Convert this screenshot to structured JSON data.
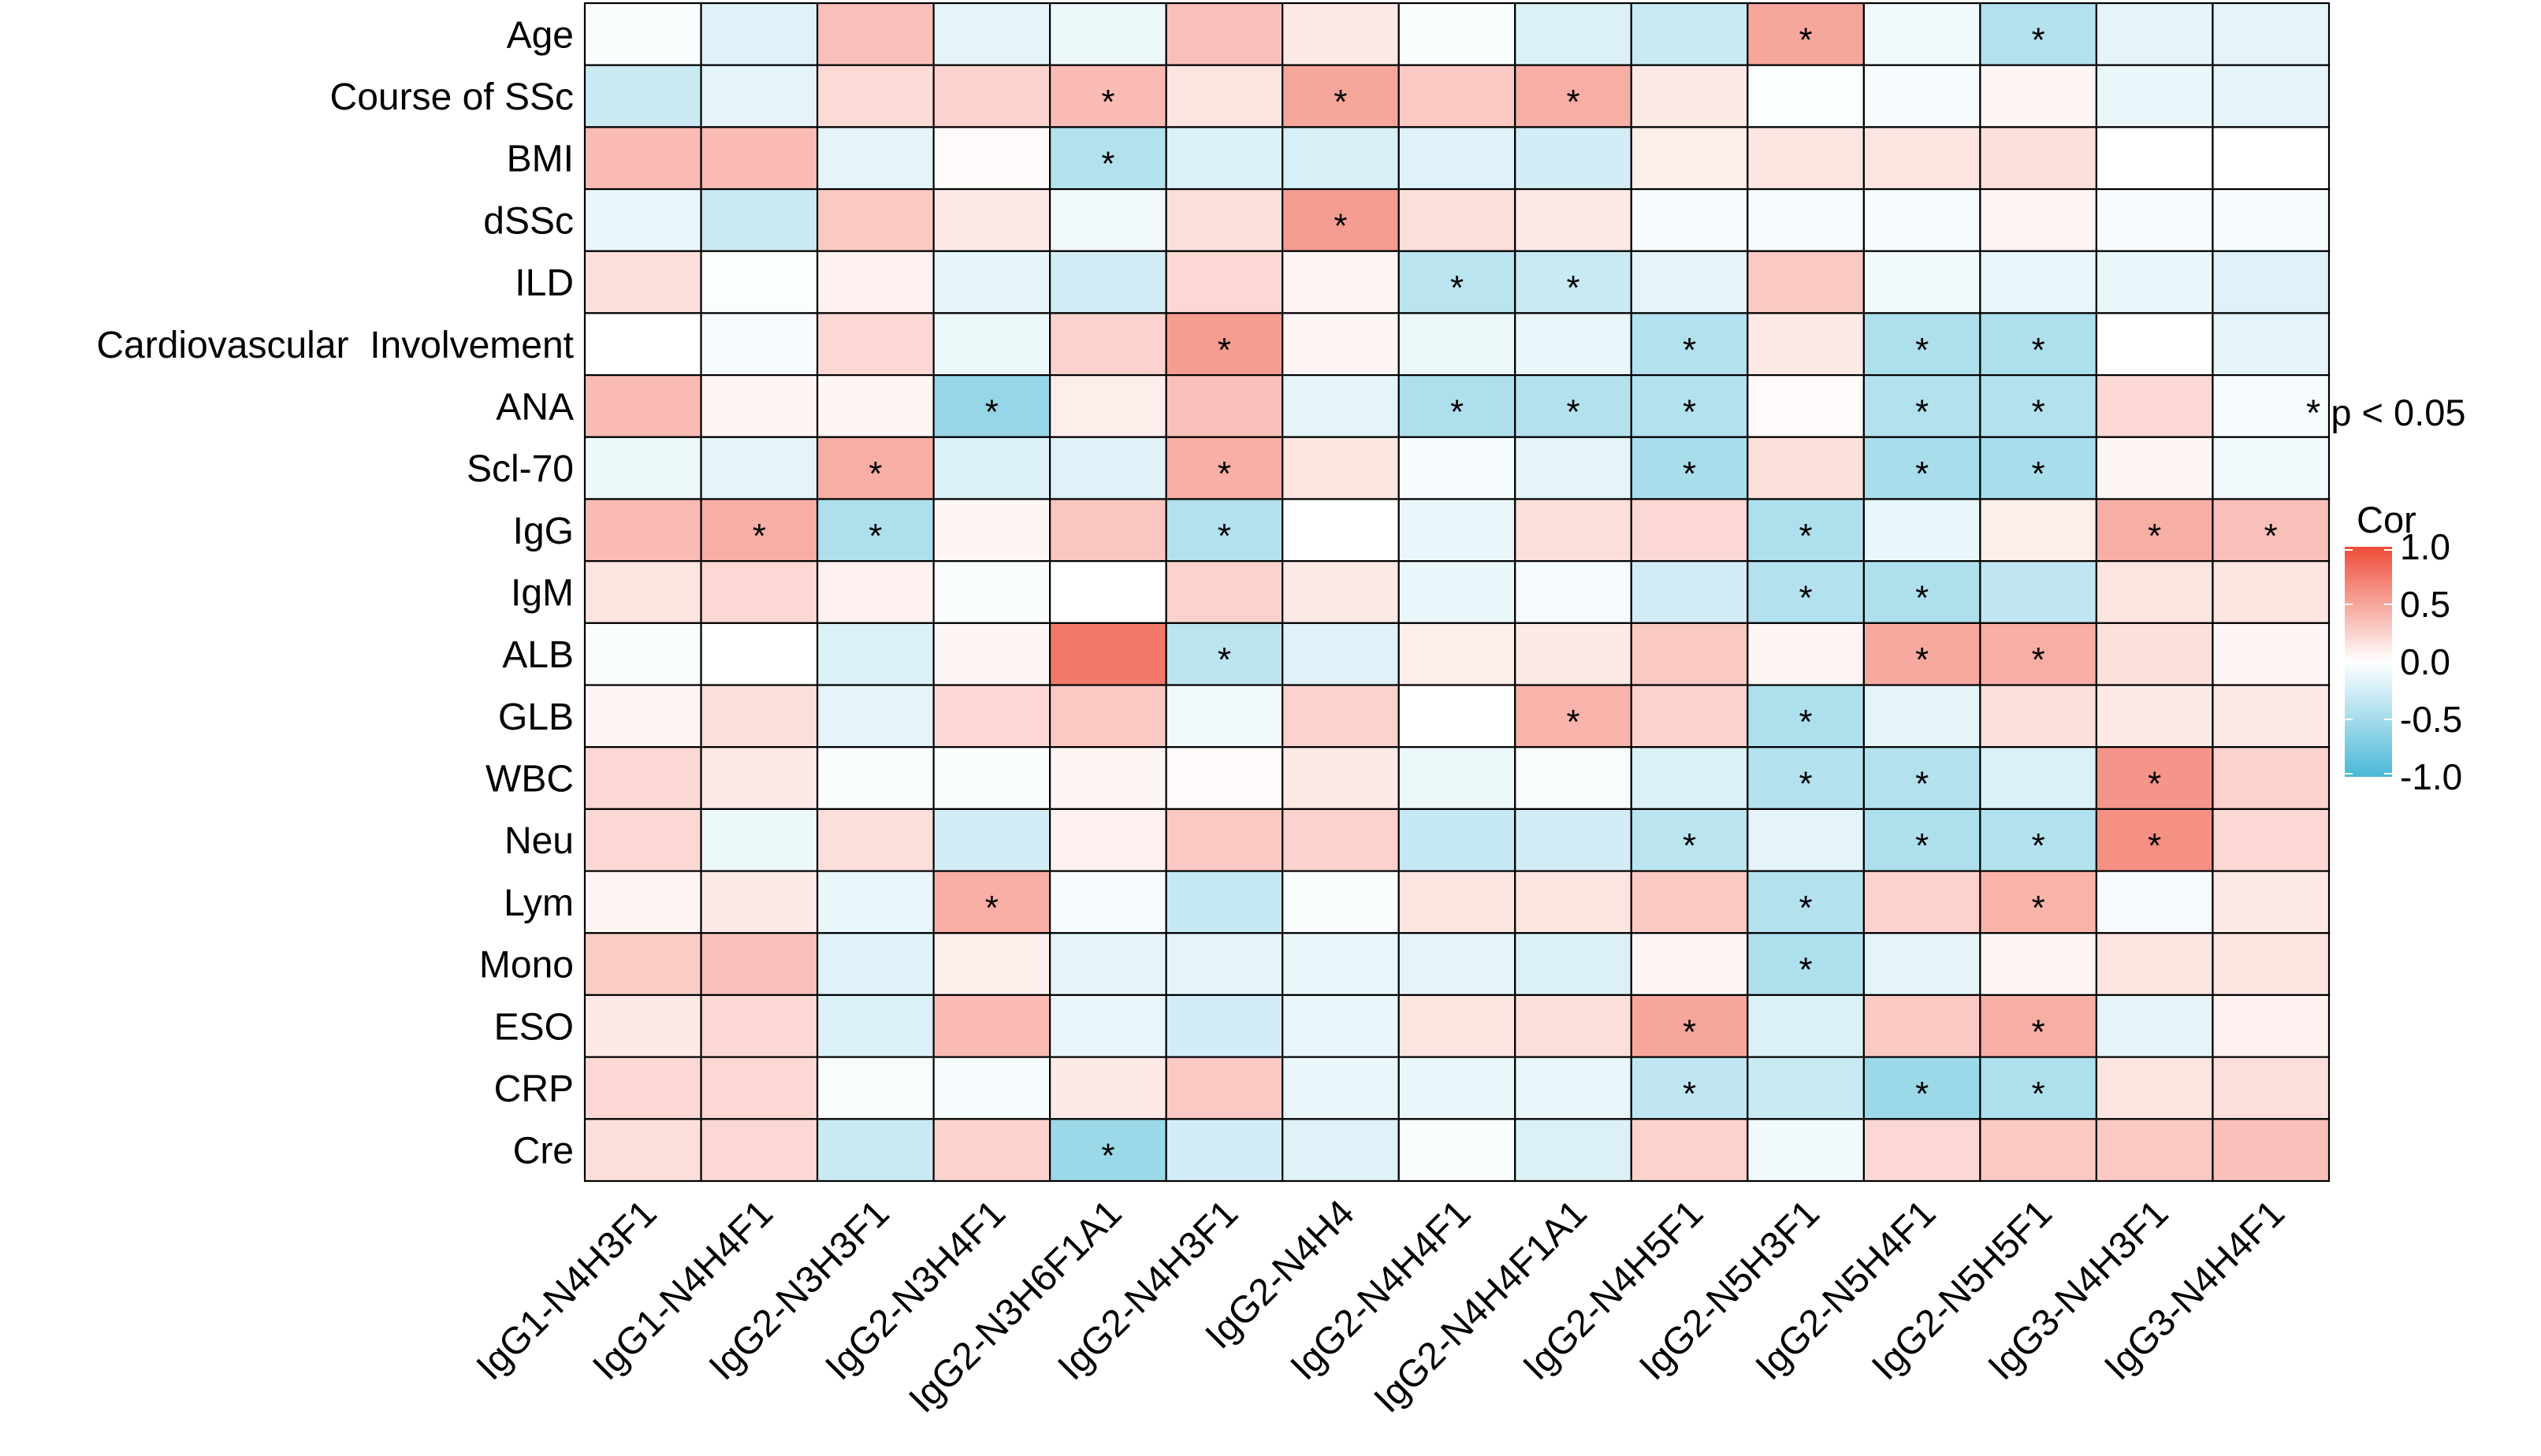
{
  "chart_data": {
    "type": "heatmap",
    "title": "",
    "xlabel": "",
    "ylabel": "",
    "rows": [
      "Age",
      "Course of SSc",
      "BMI",
      "dSSc",
      "ILD",
      "Cardiovascular  Involvement",
      "ANA",
      "Scl-70",
      "IgG",
      "IgM",
      "ALB",
      "GLB",
      "WBC",
      "Neu",
      "Lym",
      "Mono",
      "ESO",
      "CRP",
      "Cre"
    ],
    "columns": [
      "IgG1-N4H3F1",
      "IgG1-N4H4F1",
      "IgG2-N3H3F1",
      "IgG2-N3H4F1",
      "IgG2-N3H6F1A1",
      "IgG2-N4H3F1",
      "IgG2-N4H4",
      "IgG2-N4H4F1",
      "IgG2-N4H4F1A1",
      "IgG2-N4H5F1",
      "IgG2-N5H3F1",
      "IgG2-N5H4F1",
      "IgG2-N5H5F1",
      "IgG3-N4H3F1",
      "IgG3-N4H4F1"
    ],
    "values": [
      [
        -0.03,
        -0.18,
        0.35,
        -0.15,
        -0.1,
        0.35,
        0.12,
        -0.03,
        -0.2,
        -0.3,
        0.5,
        -0.08,
        -0.42,
        -0.15,
        -0.15
      ],
      [
        -0.3,
        -0.15,
        0.2,
        0.25,
        0.38,
        0.15,
        0.5,
        0.3,
        0.45,
        0.12,
        -0.02,
        -0.05,
        0.05,
        -0.12,
        -0.15
      ],
      [
        0.38,
        0.38,
        -0.15,
        0.03,
        -0.42,
        -0.2,
        -0.22,
        -0.18,
        -0.25,
        0.1,
        0.15,
        0.15,
        0.18,
        0.0,
        0.0
      ],
      [
        -0.12,
        -0.3,
        0.3,
        0.12,
        -0.08,
        0.18,
        0.55,
        0.18,
        0.12,
        -0.05,
        -0.05,
        -0.05,
        0.05,
        -0.05,
        -0.05
      ],
      [
        0.18,
        -0.02,
        0.08,
        -0.15,
        -0.25,
        0.22,
        0.05,
        -0.38,
        -0.3,
        -0.15,
        0.3,
        -0.08,
        -0.12,
        -0.12,
        -0.18
      ],
      [
        0.0,
        -0.05,
        0.22,
        -0.1,
        0.25,
        0.55,
        0.05,
        -0.1,
        -0.12,
        -0.42,
        0.12,
        -0.45,
        -0.45,
        0.0,
        -0.15
      ],
      [
        0.38,
        0.05,
        0.05,
        -0.58,
        0.1,
        0.35,
        -0.15,
        -0.45,
        -0.42,
        -0.42,
        0.03,
        -0.42,
        -0.42,
        0.22,
        -0.05
      ],
      [
        -0.1,
        -0.15,
        0.45,
        -0.2,
        -0.18,
        0.45,
        0.15,
        -0.05,
        -0.15,
        -0.48,
        0.18,
        -0.48,
        -0.48,
        0.05,
        -0.08
      ],
      [
        0.38,
        0.45,
        -0.45,
        0.05,
        0.32,
        -0.42,
        0.0,
        -0.12,
        0.18,
        0.22,
        -0.45,
        -0.12,
        0.1,
        0.45,
        0.35
      ],
      [
        0.15,
        0.22,
        0.08,
        -0.03,
        0.0,
        0.25,
        0.12,
        -0.12,
        -0.05,
        -0.25,
        -0.42,
        -0.45,
        -0.35,
        0.15,
        0.15
      ],
      [
        -0.03,
        0.0,
        -0.2,
        0.05,
        0.75,
        -0.38,
        -0.18,
        0.1,
        0.12,
        0.3,
        0.05,
        0.48,
        0.45,
        0.18,
        0.05
      ],
      [
        0.05,
        0.18,
        -0.15,
        0.22,
        0.3,
        -0.08,
        0.25,
        0.0,
        0.42,
        0.25,
        -0.45,
        -0.15,
        0.18,
        0.12,
        0.12
      ],
      [
        0.22,
        0.12,
        -0.03,
        -0.03,
        0.05,
        0.03,
        0.12,
        -0.1,
        -0.03,
        -0.2,
        -0.42,
        -0.42,
        -0.2,
        0.6,
        0.25
      ],
      [
        0.22,
        -0.1,
        0.18,
        -0.25,
        0.08,
        0.3,
        0.25,
        -0.32,
        -0.25,
        -0.38,
        -0.15,
        -0.45,
        -0.42,
        0.62,
        0.22
      ],
      [
        0.05,
        0.12,
        -0.12,
        0.45,
        -0.05,
        -0.32,
        -0.03,
        0.15,
        0.15,
        0.3,
        -0.42,
        0.25,
        0.42,
        -0.05,
        0.12
      ],
      [
        0.28,
        0.35,
        -0.18,
        0.1,
        -0.15,
        -0.15,
        -0.12,
        -0.15,
        -0.2,
        0.05,
        -0.45,
        -0.15,
        0.05,
        0.15,
        0.15
      ],
      [
        0.12,
        0.22,
        -0.2,
        0.38,
        -0.12,
        -0.25,
        -0.12,
        0.15,
        0.18,
        0.5,
        -0.2,
        0.3,
        0.45,
        -0.15,
        0.08
      ],
      [
        0.22,
        0.22,
        -0.03,
        -0.05,
        0.12,
        0.3,
        -0.12,
        -0.12,
        -0.12,
        -0.35,
        -0.3,
        -0.55,
        -0.45,
        0.15,
        0.18
      ],
      [
        0.18,
        0.22,
        -0.3,
        0.25,
        -0.55,
        -0.25,
        -0.18,
        -0.03,
        -0.2,
        0.25,
        -0.08,
        0.22,
        0.3,
        0.3,
        0.35
      ]
    ],
    "significant": [
      [
        "Age",
        "IgG2-N5H3F1"
      ],
      [
        "Age",
        "IgG2-N5H5F1"
      ],
      [
        "Course of SSc",
        "IgG2-N3H6F1A1"
      ],
      [
        "Course of SSc",
        "IgG2-N4H4"
      ],
      [
        "Course of SSc",
        "IgG2-N4H4F1A1"
      ],
      [
        "BMI",
        "IgG2-N3H6F1A1"
      ],
      [
        "dSSc",
        "IgG2-N4H4"
      ],
      [
        "ILD",
        "IgG2-N4H4F1"
      ],
      [
        "ILD",
        "IgG2-N4H4F1A1"
      ],
      [
        "Cardiovascular  Involvement",
        "IgG2-N4H3F1"
      ],
      [
        "Cardiovascular  Involvement",
        "IgG2-N4H5F1"
      ],
      [
        "Cardiovascular  Involvement",
        "IgG2-N5H4F1"
      ],
      [
        "Cardiovascular  Involvement",
        "IgG2-N5H5F1"
      ],
      [
        "ANA",
        "IgG2-N3H4F1"
      ],
      [
        "ANA",
        "IgG2-N4H4F1"
      ],
      [
        "ANA",
        "IgG2-N4H4F1A1"
      ],
      [
        "ANA",
        "IgG2-N4H5F1"
      ],
      [
        "ANA",
        "IgG2-N5H4F1"
      ],
      [
        "ANA",
        "IgG2-N5H5F1"
      ],
      [
        "Scl-70",
        "IgG2-N3H3F1"
      ],
      [
        "Scl-70",
        "IgG2-N4H3F1"
      ],
      [
        "Scl-70",
        "IgG2-N4H5F1"
      ],
      [
        "Scl-70",
        "IgG2-N5H4F1"
      ],
      [
        "Scl-70",
        "IgG2-N5H5F1"
      ],
      [
        "IgG",
        "IgG1-N4H4F1"
      ],
      [
        "IgG",
        "IgG2-N3H3F1"
      ],
      [
        "IgG",
        "IgG2-N4H3F1"
      ],
      [
        "IgG",
        "IgG2-N5H3F1"
      ],
      [
        "IgG",
        "IgG3-N4H3F1"
      ],
      [
        "IgG",
        "IgG3-N4H4F1"
      ],
      [
        "IgM",
        "IgG2-N5H3F1"
      ],
      [
        "IgM",
        "IgG2-N5H4F1"
      ],
      [
        "ALB",
        "IgG2-N4H3F1"
      ],
      [
        "ALB",
        "IgG2-N5H4F1"
      ],
      [
        "ALB",
        "IgG2-N5H5F1"
      ],
      [
        "GLB",
        "IgG2-N4H4F1A1"
      ],
      [
        "GLB",
        "IgG2-N5H3F1"
      ],
      [
        "WBC",
        "IgG2-N5H3F1"
      ],
      [
        "WBC",
        "IgG2-N5H4F1"
      ],
      [
        "WBC",
        "IgG3-N4H3F1"
      ],
      [
        "Neu",
        "IgG2-N4H5F1"
      ],
      [
        "Neu",
        "IgG2-N5H4F1"
      ],
      [
        "Neu",
        "IgG2-N5H5F1"
      ],
      [
        "Neu",
        "IgG3-N4H3F1"
      ],
      [
        "Lym",
        "IgG2-N3H4F1"
      ],
      [
        "Lym",
        "IgG2-N5H3F1"
      ],
      [
        "Lym",
        "IgG2-N5H5F1"
      ],
      [
        "Mono",
        "IgG2-N5H3F1"
      ],
      [
        "ESO",
        "IgG2-N4H5F1"
      ],
      [
        "ESO",
        "IgG2-N5H5F1"
      ],
      [
        "CRP",
        "IgG2-N4H5F1"
      ],
      [
        "CRP",
        "IgG2-N5H4F1"
      ],
      [
        "CRP",
        "IgG2-N5H5F1"
      ],
      [
        "Cre",
        "IgG2-N3H6F1A1"
      ]
    ],
    "significance_marker": "*",
    "significance_note": "* p < 0.05",
    "color_scale": {
      "title": "Cor",
      "low": -1.0,
      "mid": 0.0,
      "high": 1.0,
      "low_color": "#4ab8d6",
      "mid_color": "#ffffff",
      "high_color": "#ee4c38",
      "ticks": [
        1.0,
        0.5,
        0.0,
        -0.5,
        -1.0
      ],
      "tick_labels": [
        "1.0",
        "0.5",
        "0.0",
        "-0.5",
        "-1.0"
      ]
    },
    "legend_position": "right"
  }
}
